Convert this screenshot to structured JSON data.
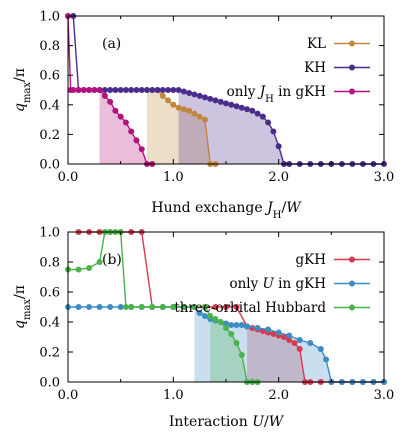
{
  "chart_data": [
    {
      "type": "line",
      "panel_label": "(a)",
      "xlabel": "Hund exchange J_H/W",
      "xlabel_parts": {
        "main": "Hund exchange ",
        "var": "J",
        "sub": "H",
        "tail": "/W"
      },
      "ylabel": "q_max/π",
      "ylabel_parts": {
        "var": "q",
        "sub": "max",
        "tail": "/π"
      },
      "xlim": [
        0.0,
        3.0
      ],
      "ylim": [
        0.0,
        1.0
      ],
      "xticks": [
        "0.0",
        "1.0",
        "2.0",
        "3.0"
      ],
      "xtick_values": [
        0.0,
        1.0,
        2.0,
        3.0
      ],
      "yticks": [
        "0.0",
        "0.2",
        "0.4",
        "0.6",
        "0.8",
        "1.0"
      ],
      "ytick_values": [
        0.0,
        0.2,
        0.4,
        0.6,
        0.8,
        1.0
      ],
      "legend_position": "top-right",
      "series": [
        {
          "name": "KL",
          "color": "#c0883c",
          "points": [
            [
              0.75,
              0.5
            ],
            [
              0.8,
              0.5
            ],
            [
              0.85,
              0.5
            ],
            [
              0.9,
              0.46
            ],
            [
              0.95,
              0.43
            ],
            [
              1.0,
              0.4
            ],
            [
              1.05,
              0.38
            ],
            [
              1.1,
              0.37
            ],
            [
              1.15,
              0.36
            ],
            [
              1.2,
              0.34
            ],
            [
              1.25,
              0.32
            ],
            [
              1.3,
              0.3
            ],
            [
              1.35,
              0.0
            ],
            [
              1.4,
              0.0
            ]
          ],
          "fill_from": 0.75
        },
        {
          "name": "KH",
          "color": "#4a2c8c",
          "points": [
            [
              0.0,
              1.0
            ],
            [
              0.05,
              1.0
            ],
            [
              0.1,
              0.5
            ],
            [
              0.15,
              0.5
            ],
            [
              0.2,
              0.5
            ],
            [
              0.25,
              0.5
            ],
            [
              0.3,
              0.5
            ],
            [
              0.35,
              0.5
            ],
            [
              0.4,
              0.5
            ],
            [
              0.45,
              0.5
            ],
            [
              0.5,
              0.5
            ],
            [
              0.55,
              0.5
            ],
            [
              0.6,
              0.5
            ],
            [
              0.65,
              0.5
            ],
            [
              0.7,
              0.5
            ],
            [
              0.75,
              0.5
            ],
            [
              0.8,
              0.5
            ],
            [
              0.85,
              0.5
            ],
            [
              0.9,
              0.5
            ],
            [
              0.95,
              0.5
            ],
            [
              1.0,
              0.5
            ],
            [
              1.05,
              0.5
            ],
            [
              1.1,
              0.49
            ],
            [
              1.15,
              0.48
            ],
            [
              1.2,
              0.47
            ],
            [
              1.25,
              0.46
            ],
            [
              1.3,
              0.45
            ],
            [
              1.35,
              0.44
            ],
            [
              1.4,
              0.43
            ],
            [
              1.45,
              0.42
            ],
            [
              1.5,
              0.41
            ],
            [
              1.55,
              0.4
            ],
            [
              1.6,
              0.39
            ],
            [
              1.65,
              0.38
            ],
            [
              1.7,
              0.37
            ],
            [
              1.75,
              0.36
            ],
            [
              1.8,
              0.34
            ],
            [
              1.85,
              0.32
            ],
            [
              1.9,
              0.28
            ],
            [
              1.95,
              0.22
            ],
            [
              2.0,
              0.12
            ],
            [
              2.05,
              0.0
            ],
            [
              2.1,
              0.0
            ],
            [
              2.2,
              0.0
            ],
            [
              2.3,
              0.0
            ],
            [
              2.4,
              0.0
            ],
            [
              2.5,
              0.0
            ],
            [
              2.6,
              0.0
            ],
            [
              2.7,
              0.0
            ],
            [
              2.8,
              0.0
            ],
            [
              2.9,
              0.0
            ],
            [
              3.0,
              0.0
            ]
          ],
          "fill_from": 1.05
        },
        {
          "name": "only J_H in gKH",
          "name_parts": {
            "main": "only ",
            "var": "J",
            "sub": "H",
            "tail": " in gKH"
          },
          "color": "#b3127d",
          "points": [
            [
              0.0,
              1.0
            ],
            [
              0.025,
              0.5
            ],
            [
              0.05,
              0.5
            ],
            [
              0.1,
              0.5
            ],
            [
              0.15,
              0.5
            ],
            [
              0.2,
              0.5
            ],
            [
              0.25,
              0.5
            ],
            [
              0.3,
              0.5
            ],
            [
              0.35,
              0.46
            ],
            [
              0.4,
              0.42
            ],
            [
              0.45,
              0.36
            ],
            [
              0.5,
              0.32
            ],
            [
              0.55,
              0.28
            ],
            [
              0.6,
              0.22
            ],
            [
              0.65,
              0.16
            ],
            [
              0.7,
              0.1
            ],
            [
              0.75,
              0.0
            ],
            [
              0.8,
              0.0
            ]
          ],
          "fill_from": 0.3
        }
      ]
    },
    {
      "type": "line",
      "panel_label": "(b)",
      "xlabel": "Interaction U/W",
      "xlabel_parts": {
        "main": "Interaction ",
        "var": "U",
        "sub": "",
        "tail": "/W"
      },
      "ylabel": "q_max/π",
      "ylabel_parts": {
        "var": "q",
        "sub": "max",
        "tail": "/π"
      },
      "xlim": [
        0.0,
        3.0
      ],
      "ylim": [
        0.0,
        1.0
      ],
      "xticks": [
        "0.0",
        "1.0",
        "2.0",
        "3.0"
      ],
      "xtick_values": [
        0.0,
        1.0,
        2.0,
        3.0
      ],
      "yticks": [
        "0.0",
        "0.2",
        "0.4",
        "0.6",
        "0.8",
        "1.0"
      ],
      "ytick_values": [
        0.0,
        0.2,
        0.4,
        0.6,
        0.8,
        1.0
      ],
      "legend_position": "top-right",
      "series": [
        {
          "name": "gKH",
          "color": "#d63a4e",
          "points": [
            [
              0.1,
              1.0
            ],
            [
              0.2,
              1.0
            ],
            [
              0.3,
              1.0
            ],
            [
              0.4,
              1.0
            ],
            [
              0.5,
              1.0
            ],
            [
              0.6,
              1.0
            ],
            [
              0.7,
              1.0
            ],
            [
              0.8,
              0.5
            ],
            [
              0.9,
              0.5
            ],
            [
              1.0,
              0.5
            ],
            [
              1.1,
              0.5
            ],
            [
              1.2,
              0.5
            ],
            [
              1.3,
              0.5
            ],
            [
              1.4,
              0.5
            ],
            [
              1.5,
              0.5
            ],
            [
              1.6,
              0.5
            ],
            [
              1.7,
              0.37
            ],
            [
              1.75,
              0.36
            ],
            [
              1.8,
              0.35
            ],
            [
              1.85,
              0.34
            ],
            [
              1.9,
              0.33
            ],
            [
              1.95,
              0.32
            ],
            [
              2.0,
              0.31
            ],
            [
              2.05,
              0.3
            ],
            [
              2.1,
              0.28
            ],
            [
              2.15,
              0.26
            ],
            [
              2.2,
              0.22
            ],
            [
              2.25,
              0.0
            ],
            [
              2.3,
              0.0
            ],
            [
              2.4,
              0.0
            ],
            [
              2.5,
              0.0
            ],
            [
              2.6,
              0.0
            ],
            [
              2.7,
              0.0
            ],
            [
              2.8,
              0.0
            ],
            [
              2.9,
              0.0
            ],
            [
              3.0,
              0.0
            ]
          ],
          "fill_from": 1.7
        },
        {
          "name": "only U in gKH",
          "name_parts": {
            "main": "only ",
            "var": "U",
            "sub": "",
            "tail": " in gKH"
          },
          "color": "#3d8cc4",
          "points": [
            [
              0.0,
              0.5
            ],
            [
              0.1,
              0.5
            ],
            [
              0.2,
              0.5
            ],
            [
              0.3,
              0.5
            ],
            [
              0.4,
              0.5
            ],
            [
              0.5,
              0.5
            ],
            [
              0.6,
              0.5
            ],
            [
              0.7,
              0.5
            ],
            [
              0.8,
              0.5
            ],
            [
              0.9,
              0.5
            ],
            [
              1.0,
              0.5
            ],
            [
              1.1,
              0.5
            ],
            [
              1.2,
              0.5
            ],
            [
              1.25,
              0.46
            ],
            [
              1.3,
              0.44
            ],
            [
              1.35,
              0.42
            ],
            [
              1.4,
              0.41
            ],
            [
              1.45,
              0.4
            ],
            [
              1.5,
              0.39
            ],
            [
              1.55,
              0.38
            ],
            [
              1.6,
              0.38
            ],
            [
              1.65,
              0.38
            ],
            [
              1.7,
              0.37
            ],
            [
              1.8,
              0.36
            ],
            [
              1.9,
              0.35
            ],
            [
              2.0,
              0.33
            ],
            [
              2.1,
              0.31
            ],
            [
              2.2,
              0.28
            ],
            [
              2.3,
              0.26
            ],
            [
              2.4,
              0.22
            ],
            [
              2.45,
              0.15
            ],
            [
              2.5,
              0.0
            ],
            [
              2.6,
              0.0
            ],
            [
              2.7,
              0.0
            ],
            [
              2.8,
              0.0
            ],
            [
              2.9,
              0.0
            ],
            [
              3.0,
              0.0
            ]
          ],
          "fill_from": 1.2
        },
        {
          "name": "three-orbital Hubbard",
          "color": "#4bb34b",
          "points": [
            [
              0.0,
              0.75
            ],
            [
              0.1,
              0.75
            ],
            [
              0.2,
              0.76
            ],
            [
              0.3,
              0.8
            ],
            [
              0.35,
              1.0
            ],
            [
              0.4,
              1.0
            ],
            [
              0.45,
              1.0
            ],
            [
              0.5,
              1.0
            ],
            [
              0.55,
              0.5
            ],
            [
              0.6,
              0.5
            ],
            [
              0.7,
              0.5
            ],
            [
              0.8,
              0.5
            ],
            [
              0.9,
              0.5
            ],
            [
              1.0,
              0.5
            ],
            [
              1.1,
              0.5
            ],
            [
              1.2,
              0.5
            ],
            [
              1.3,
              0.5
            ],
            [
              1.35,
              0.44
            ],
            [
              1.4,
              0.42
            ],
            [
              1.45,
              0.4
            ],
            [
              1.5,
              0.36
            ],
            [
              1.55,
              0.32
            ],
            [
              1.6,
              0.26
            ],
            [
              1.65,
              0.18
            ],
            [
              1.7,
              0.0
            ],
            [
              1.75,
              0.0
            ],
            [
              1.8,
              0.0
            ]
          ],
          "fill_from": 1.35
        }
      ]
    }
  ]
}
